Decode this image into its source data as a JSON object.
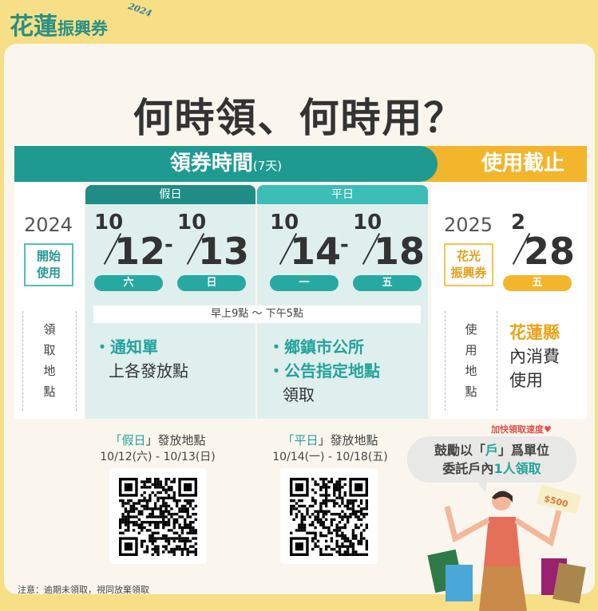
{
  "logo": {
    "main": "花蓮",
    "sub": "振興券",
    "year": "2024"
  },
  "title": "何時領、何時用？",
  "banner": {
    "claim": "領券時間",
    "claim_days": "(7天)",
    "deadline": "使用截止"
  },
  "claim": {
    "start_year": "2024",
    "start_label_1": "開始",
    "start_label_2": "使用",
    "place_label": [
      "領",
      "取",
      "地",
      "點"
    ],
    "holiday": {
      "header": "假日",
      "from": {
        "month": "10",
        "day": "12",
        "weekday": "六"
      },
      "to": {
        "month": "10",
        "day": "13",
        "weekday": "日"
      },
      "items": [
        "・通知單",
        "上各發放點"
      ]
    },
    "weekday": {
      "header": "平日",
      "from": {
        "month": "10",
        "day": "14",
        "weekday": "一"
      },
      "to": {
        "month": "10",
        "day": "18",
        "weekday": "五"
      },
      "items": [
        "・鄉鎮市公所",
        "・公告指定地點",
        "領取"
      ]
    },
    "hours": "早上9點 ～ 下午5點",
    "dash": "-"
  },
  "deadline": {
    "year": "2025",
    "month": "2",
    "day": "28",
    "weekday": "五",
    "label_1": "花光",
    "label_2": "振興券",
    "place_label": [
      "使",
      "用",
      "地",
      "點"
    ],
    "place_highlight": "花蓮縣",
    "place_1": "內消費",
    "place_2": "使用"
  },
  "qr": [
    {
      "prefix": "「",
      "tag": "假日",
      "suffix": "」發放地點",
      "dates": "10/12(六) - 10/13(日)"
    },
    {
      "prefix": "「",
      "tag": "平日",
      "suffix": "」發放地點",
      "dates": "10/14(一) - 10/18(五)"
    }
  ],
  "tip": {
    "speed": "加快領取速度♥",
    "line1_a": "鼓勵以「",
    "line1_hl": "戶",
    "line1_b": "」爲單位",
    "line2_a": "委託戶內",
    "line2_hl": "1人領取",
    "money": "$500"
  },
  "note": "注意：逾期未領取，視同放棄領取",
  "colors": {
    "teal": "#1f9a91",
    "orange": "#f3b52c",
    "yellow": "#f6df86"
  }
}
